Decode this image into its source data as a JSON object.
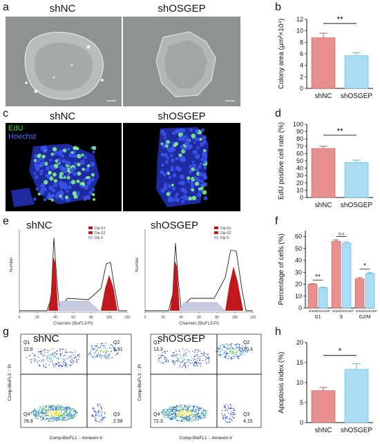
{
  "panels": {
    "a": {
      "label": "a",
      "left_title": "shNC",
      "right_title": "shOSGEP"
    },
    "c": {
      "label": "c",
      "left_title": "shNC",
      "right_title": "shOSGEP",
      "legend_edu": "EdU",
      "legend_hoechst": "Hoechst"
    },
    "e": {
      "label": "e",
      "left_title": "shNC",
      "right_title": "shOSGEP",
      "legend": [
        "Dip G1",
        "Dip G2",
        "Dip S"
      ],
      "ylabel": "Number",
      "xlabel": "Channels (BluFL3-PI)",
      "xticks": [
        "0",
        "20",
        "40",
        "60",
        "80",
        "100",
        "120"
      ]
    },
    "g": {
      "label": "g",
      "left_title": "shNC",
      "right_title": "shOSGEP",
      "ylabel": "Comp-BluFL3 :: PI",
      "xlabel": "Comp-BluFL1 :: Annexin-V",
      "left_quadrants": {
        "Q1": "Q1",
        "Q1v": "12.6",
        "Q2": "Q2",
        "Q2v": "5.91",
        "Q3": "Q3",
        "Q3v": "2.58",
        "Q4": "Q4",
        "Q4v": "78.9"
      },
      "right_quadrants": {
        "Q1": "Q1",
        "Q1v": "13.3",
        "Q2": "Q2",
        "Q2v": "10.3",
        "Q3": "Q3",
        "Q3v": "4.15",
        "Q4": "Q4",
        "Q4v": "72.3"
      }
    }
  },
  "colors": {
    "shNC": "#e8908f",
    "shOSGEP": "#aadcf3",
    "shNC_edge": "#c05a5a",
    "shOSGEP_edge": "#5ab4e0"
  },
  "chart_data": [
    {
      "panel": "b",
      "type": "bar",
      "categories": [
        "shNC",
        "shOSGEP"
      ],
      "values": [
        8.8,
        5.7
      ],
      "errors": [
        0.8,
        0.5
      ],
      "ylabel": "Colony area (μm²×10⁴)",
      "ylim": [
        0,
        12
      ],
      "yticks": [
        "0",
        "2",
        "4",
        "6",
        "8",
        "10",
        "12"
      ],
      "significance": "**"
    },
    {
      "panel": "d",
      "type": "bar",
      "categories": [
        "shNC",
        "shOSGEP"
      ],
      "values": [
        67,
        48
      ],
      "errors": [
        3,
        3
      ],
      "ylabel": "EdU positive cell rate (%)",
      "ylim": [
        0,
        100
      ],
      "yticks": [
        "0",
        "10",
        "20",
        "30",
        "40",
        "50",
        "60",
        "70",
        "80",
        "90",
        "100"
      ],
      "significance": "**"
    },
    {
      "panel": "f",
      "type": "bar",
      "groups": [
        "G1",
        "S",
        "G2/M"
      ],
      "series": [
        {
          "name": "shNC",
          "values": [
            20,
            56,
            24.5
          ],
          "errors": [
            0.4,
            1.2,
            1
          ]
        },
        {
          "name": "shOSGEP",
          "values": [
            17,
            54.5,
            29
          ],
          "errors": [
            0.4,
            1,
            0.7
          ]
        }
      ],
      "bar_labels": [
        "shNC",
        "shOSGEP"
      ],
      "ylabel": "Percentage of cells (%)",
      "ylim": [
        0,
        65
      ],
      "yticks": [
        "0",
        "10",
        "20",
        "30",
        "40",
        "50",
        "60"
      ],
      "significance": [
        "**",
        "n.s",
        "*"
      ]
    },
    {
      "panel": "h",
      "type": "bar",
      "categories": [
        "shNC",
        "shOSGEP"
      ],
      "values": [
        8,
        13.3
      ],
      "errors": [
        0.8,
        1.4
      ],
      "ylabel": "Apoptosis index (%)",
      "ylim": [
        0,
        20
      ],
      "yticks": [
        "0",
        "5",
        "10",
        "15",
        "20"
      ],
      "significance": "*"
    }
  ]
}
